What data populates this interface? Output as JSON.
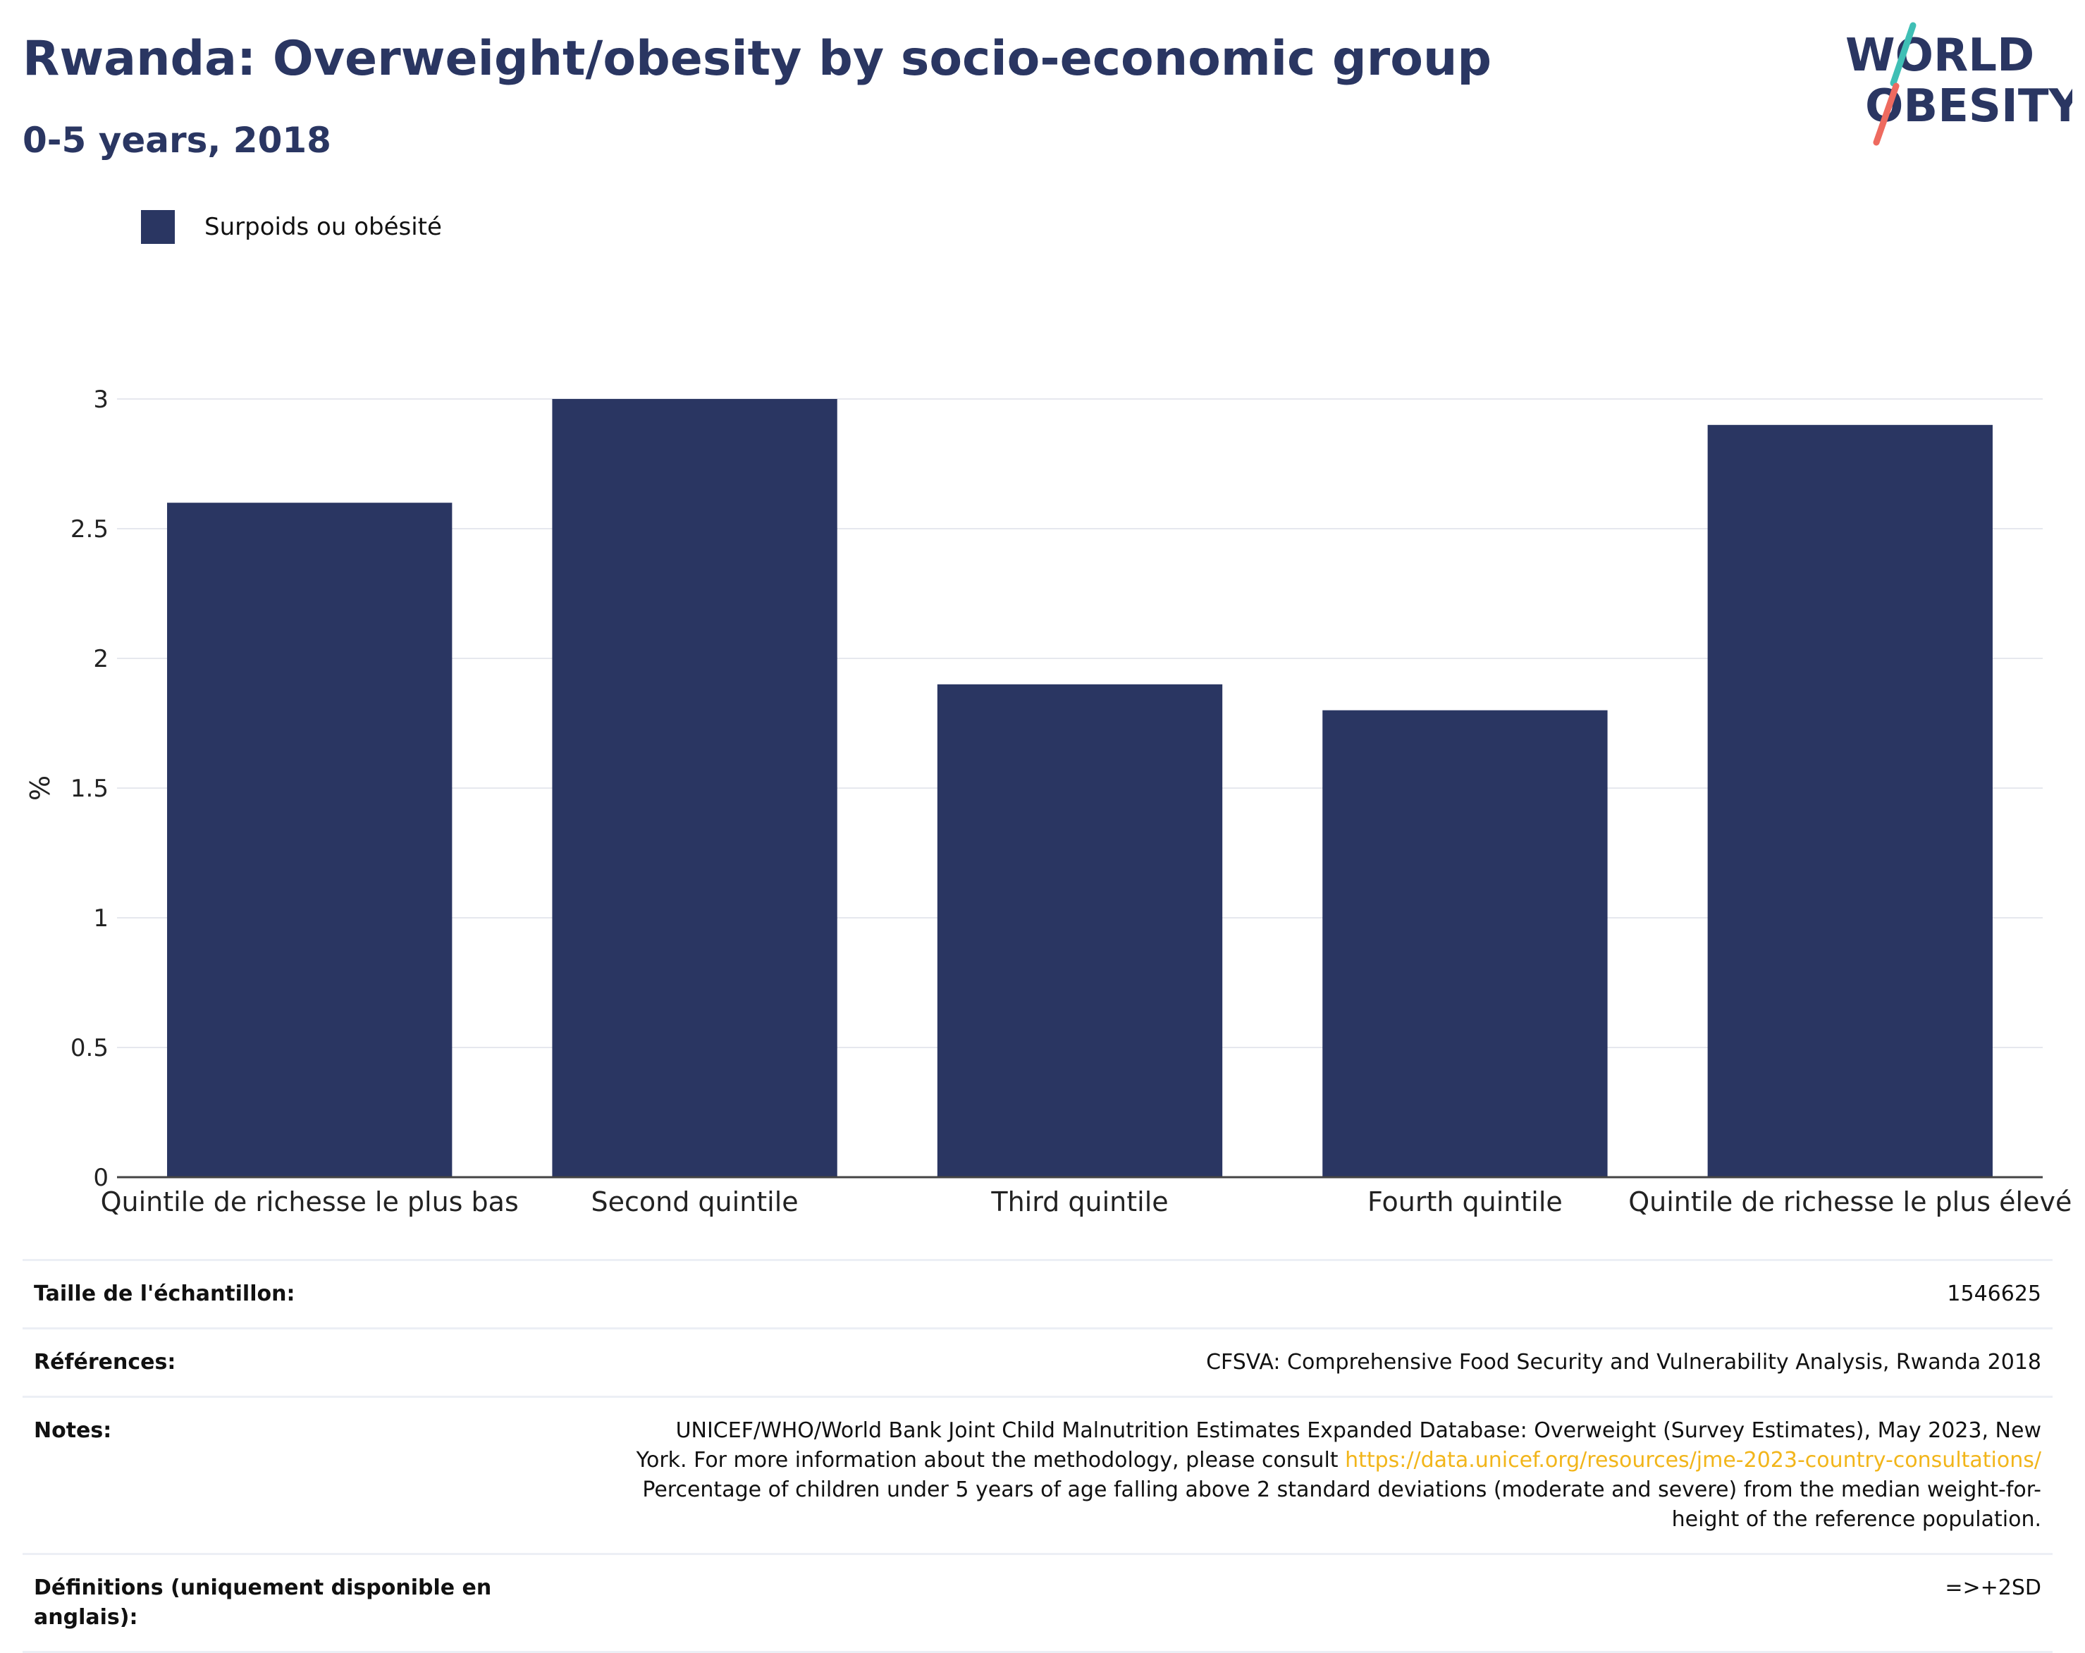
{
  "header": {
    "title": "Rwanda: Overweight/obesity by socio-economic group",
    "subtitle": "0-5 years, 2018"
  },
  "logo": {
    "line1": "WORLD",
    "line2": "OBESITY",
    "colors": {
      "navy": "#2a3662",
      "teal": "#3fbfb5",
      "coral": "#ee6a5f"
    }
  },
  "chart_data": {
    "type": "bar",
    "categories": [
      "Quintile de richesse le plus bas",
      "Second quintile",
      "Third quintile",
      "Fourth quintile",
      "Quintile de richesse le plus élevé"
    ],
    "series": [
      {
        "name": "Surpoids ou obésité",
        "values": [
          2.6,
          3.0,
          1.9,
          1.8,
          2.9
        ],
        "color": "#2a3662"
      }
    ],
    "ylabel": "%",
    "ylim": [
      0,
      3
    ],
    "yticks": [
      0,
      0.5,
      1,
      1.5,
      2,
      2.5,
      3
    ],
    "ytick_labels": [
      "0",
      "0.5",
      "1",
      "1.5",
      "2",
      "2.5",
      "3"
    ],
    "grid": true,
    "legend_position": "top-left"
  },
  "details": [
    {
      "label": "Taille de l'échantillon:",
      "value": "1546625"
    },
    {
      "label": "Références:",
      "value": "CFSVA: Comprehensive Food Security and Vulnerability Analysis, Rwanda 2018"
    },
    {
      "label": "Notes:",
      "value_line1": "UNICEF/WHO/World Bank Joint Child Malnutrition Estimates Expanded Database: Overweight (Survey Estimates), May 2023, New",
      "value_line2_prefix": "York. For more information about the methodology, please consult ",
      "value_link": "https://data.unicef.org/resources/jme-2023-country-consultations/",
      "value_line3": "Percentage of children under 5 years of age falling above 2 standard deviations (moderate and severe) from the median weight-for-",
      "value_line4": "height of the reference population."
    },
    {
      "label": "Définitions (uniquement disponible en anglais):",
      "value": "=>+2SD"
    }
  ]
}
